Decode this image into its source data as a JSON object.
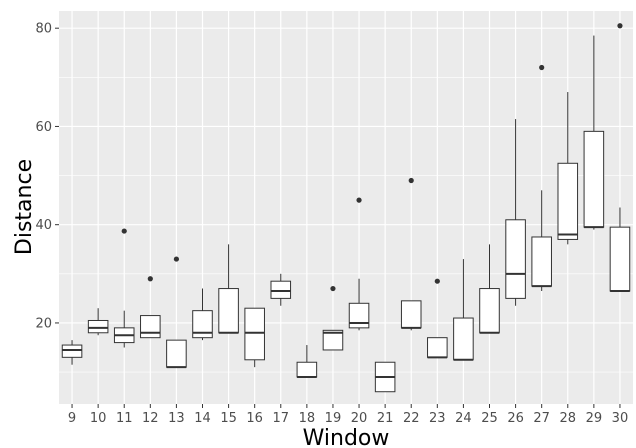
{
  "chart_data": {
    "type": "boxplot",
    "xlabel": "Window",
    "ylabel": "Distance",
    "ylim": [
      3.5,
      83.5
    ],
    "y_ticks": [
      20,
      40,
      60,
      80
    ],
    "grid": true,
    "background": "#ebebeb",
    "grid_color": "#ffffff",
    "categories": [
      "9",
      "10",
      "11",
      "12",
      "13",
      "14",
      "15",
      "16",
      "17",
      "18",
      "19",
      "20",
      "21",
      "22",
      "23",
      "24",
      "25",
      "26",
      "27",
      "28",
      "29",
      "30"
    ],
    "boxes": [
      {
        "x": "9",
        "min": 11.5,
        "q1": 13,
        "median": 14.5,
        "q3": 15.5,
        "max": 16.5,
        "outliers": []
      },
      {
        "x": "10",
        "min": 17.5,
        "q1": 18,
        "median": 19,
        "q3": 20.5,
        "max": 23,
        "outliers": []
      },
      {
        "x": "11",
        "min": 15,
        "q1": 16,
        "median": 17.5,
        "q3": 19,
        "max": 22.5,
        "outliers": [
          38.7
        ]
      },
      {
        "x": "12",
        "min": 17,
        "q1": 17,
        "median": 18,
        "q3": 21.5,
        "max": 21.5,
        "outliers": [
          29
        ]
      },
      {
        "x": "13",
        "min": 11,
        "q1": 11,
        "median": 11,
        "q3": 16.5,
        "max": 16.5,
        "outliers": [
          33
        ]
      },
      {
        "x": "14",
        "min": 16.5,
        "q1": 17,
        "median": 18,
        "q3": 22.5,
        "max": 27,
        "outliers": []
      },
      {
        "x": "15",
        "min": 18,
        "q1": 18,
        "median": 18,
        "q3": 27,
        "max": 36,
        "outliers": []
      },
      {
        "x": "16",
        "min": 11,
        "q1": 12.5,
        "median": 18,
        "q3": 23,
        "max": 23,
        "outliers": []
      },
      {
        "x": "17",
        "min": 23.5,
        "q1": 25,
        "median": 26.5,
        "q3": 28.5,
        "max": 30,
        "outliers": []
      },
      {
        "x": "18",
        "min": 9,
        "q1": 9,
        "median": 9,
        "q3": 12,
        "max": 15.5,
        "outliers": []
      },
      {
        "x": "19",
        "min": 14.5,
        "q1": 14.5,
        "median": 18,
        "q3": 18.5,
        "max": 18.5,
        "outliers": [
          27
        ]
      },
      {
        "x": "20",
        "min": 18.5,
        "q1": 19,
        "median": 20,
        "q3": 24,
        "max": 29,
        "outliers": [
          45
        ]
      },
      {
        "x": "21",
        "min": 6,
        "q1": 6,
        "median": 9,
        "q3": 12,
        "max": 12,
        "outliers": []
      },
      {
        "x": "22",
        "min": 18.5,
        "q1": 19,
        "median": 19,
        "q3": 24.5,
        "max": 24.5,
        "outliers": [
          49
        ]
      },
      {
        "x": "23",
        "min": 13,
        "q1": 13,
        "median": 13,
        "q3": 17,
        "max": 17,
        "outliers": [
          28.5
        ]
      },
      {
        "x": "24",
        "min": 12.5,
        "q1": 12.5,
        "median": 12.5,
        "q3": 21,
        "max": 33,
        "outliers": []
      },
      {
        "x": "25",
        "min": 18,
        "q1": 18,
        "median": 18,
        "q3": 27,
        "max": 36,
        "outliers": []
      },
      {
        "x": "26",
        "min": 23.5,
        "q1": 25,
        "median": 30,
        "q3": 41,
        "max": 61.5,
        "outliers": []
      },
      {
        "x": "27",
        "min": 26.5,
        "q1": 27.5,
        "median": 27.5,
        "q3": 37.5,
        "max": 47,
        "outliers": [
          72
        ]
      },
      {
        "x": "28",
        "min": 36,
        "q1": 37,
        "median": 38,
        "q3": 52.5,
        "max": 67,
        "outliers": []
      },
      {
        "x": "29",
        "min": 39,
        "q1": 39.5,
        "median": 39.5,
        "q3": 59,
        "max": 78.5,
        "outliers": []
      },
      {
        "x": "30",
        "min": 26.5,
        "q1": 26.5,
        "median": 26.5,
        "q3": 39.5,
        "max": 43.5,
        "outliers": [
          80.5
        ]
      }
    ]
  }
}
